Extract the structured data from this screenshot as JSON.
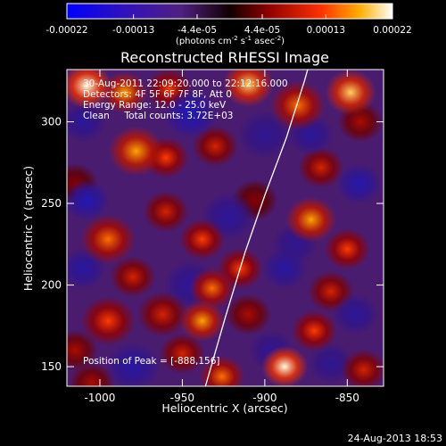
{
  "chart_data": {
    "type": "heatmap",
    "title": "Reconstructed RHESSI Image",
    "xlabel": "Heliocentric X (arcsec)",
    "ylabel": "Heliocentric Y (arcsec)",
    "xlim": [
      -1020,
      -828
    ],
    "ylim": [
      138,
      332
    ],
    "x_ticks": [
      "-1000",
      "-950",
      "-900",
      "-850"
    ],
    "x_tick_values": [
      -1000,
      -950,
      -900,
      -850
    ],
    "y_ticks": [
      "150",
      "200",
      "250",
      "300"
    ],
    "y_tick_values": [
      150,
      200,
      250,
      300
    ],
    "colorbar": {
      "ticks": [
        "-0.00022",
        "-0.00013",
        "-4.4e-05",
        "4.4e-05",
        "0.00013",
        "0.00022"
      ],
      "tick_values": [
        -0.00022,
        -0.00013,
        -4.4e-05,
        4.4e-05,
        0.00013,
        0.00022
      ],
      "range": [
        -0.00022,
        0.00022
      ],
      "label_parts": [
        "(photons cm",
        "-2",
        " s",
        "-1",
        " asec",
        "-2",
        ")"
      ]
    },
    "annotations": [
      "30-Aug-2011 22:09:20.000 to 22:12:16.000",
      "Detectors: 4F 5F 6F 7F 8F, Att 0",
      "Energy Range: 12.0 - 25.0 keV",
      "Clean     Total counts: 3.72E+03"
    ],
    "peak_label": "Position of Peak = [-888,156]",
    "limb_curve": [
      [
        -936,
        138
      ],
      [
        -924,
        180
      ],
      [
        -912,
        220
      ],
      [
        -900,
        255
      ],
      [
        -887,
        290
      ],
      [
        -876,
        325
      ],
      [
        -874,
        332
      ]
    ],
    "image_blobs": [
      [
        -1008,
        322,
        1.0,
        11
      ],
      [
        -985,
        318,
        0.8,
        10
      ],
      [
        -958,
        320,
        0.6,
        10
      ],
      [
        -945,
        305,
        -0.9,
        12
      ],
      [
        -910,
        323,
        0.9,
        11
      ],
      [
        -880,
        310,
        0.7,
        12
      ],
      [
        -848,
        318,
        0.9,
        11
      ],
      [
        -1010,
        300,
        -0.5,
        10
      ],
      [
        -978,
        282,
        0.8,
        12
      ],
      [
        -960,
        278,
        0.6,
        10
      ],
      [
        -1015,
        262,
        0.3,
        10
      ],
      [
        -1008,
        252,
        -0.8,
        10
      ],
      [
        -930,
        285,
        0.5,
        10
      ],
      [
        -900,
        292,
        -0.4,
        12
      ],
      [
        -866,
        272,
        0.5,
        10
      ],
      [
        -843,
        262,
        -0.7,
        10
      ],
      [
        -995,
        228,
        0.7,
        12
      ],
      [
        -960,
        245,
        0.5,
        10
      ],
      [
        -938,
        228,
        0.6,
        10
      ],
      [
        -906,
        252,
        0.3,
        10
      ],
      [
        -872,
        240,
        0.8,
        11
      ],
      [
        -850,
        222,
        0.6,
        10
      ],
      [
        -1010,
        210,
        -0.6,
        10
      ],
      [
        -980,
        205,
        0.5,
        10
      ],
      [
        -945,
        200,
        -0.5,
        12
      ],
      [
        -915,
        210,
        0.6,
        10
      ],
      [
        -882,
        225,
        -0.4,
        10
      ],
      [
        -888,
        210,
        -0.6,
        10
      ],
      [
        -860,
        196,
        0.5,
        10
      ],
      [
        -995,
        178,
        0.6,
        12
      ],
      [
        -962,
        182,
        0.5,
        11
      ],
      [
        -938,
        178,
        0.8,
        10
      ],
      [
        -910,
        182,
        0.4,
        10
      ],
      [
        -870,
        172,
        0.6,
        10
      ],
      [
        -845,
        182,
        -0.5,
        10
      ],
      [
        -1015,
        160,
        0.4,
        10
      ],
      [
        -980,
        150,
        -0.6,
        12
      ],
      [
        -950,
        158,
        0.5,
        10
      ],
      [
        -926,
        144,
        0.7,
        10
      ],
      [
        -896,
        160,
        -0.4,
        10
      ],
      [
        -888,
        150,
        1.0,
        10
      ],
      [
        -860,
        152,
        -0.4,
        10
      ],
      [
        -840,
        148,
        0.5,
        10
      ],
      [
        -1005,
        140,
        0.4,
        10
      ],
      [
        -932,
        198,
        0.7,
        10
      ],
      [
        -922,
        242,
        -0.5,
        12
      ],
      [
        -872,
        292,
        -0.5,
        10
      ],
      [
        -842,
        300,
        0.4,
        10
      ]
    ],
    "timestamp": "24-Aug-2013 18:53"
  }
}
